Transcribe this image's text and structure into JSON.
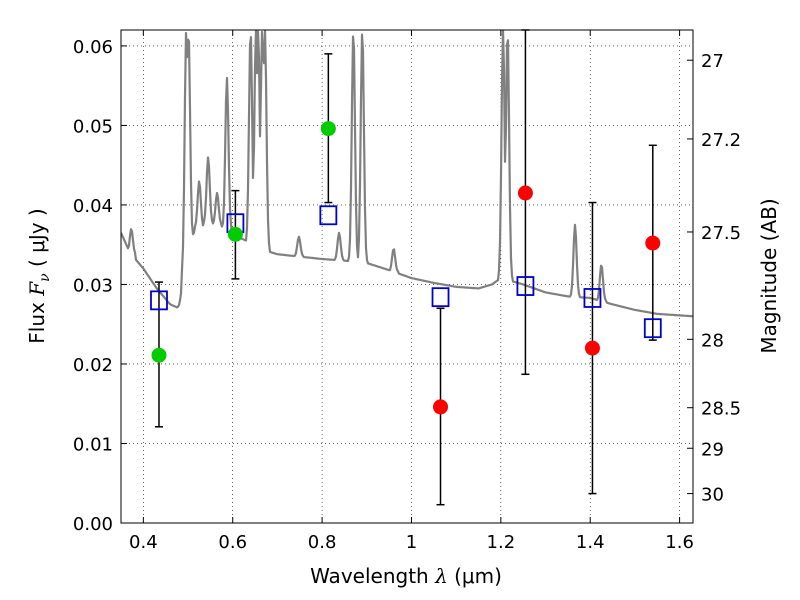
{
  "chart_data": {
    "type": "scatter",
    "xlabel": {
      "prefix": "Wavelength  ",
      "sym": "λ",
      "unit": " (μm)"
    },
    "ylabel": {
      "prefix": "Flux  ",
      "sym": "F",
      "sub": "ν",
      "unit": "  ( μJy )"
    },
    "y2label": "Magnitude (AB)",
    "xlim": [
      0.35,
      1.63
    ],
    "ylim": [
      0.0,
      0.062
    ],
    "grid": true,
    "x_ticks": [
      0.4,
      0.6,
      0.8,
      1.0,
      1.2,
      1.4,
      1.6
    ],
    "x_tick_labels": [
      "0.4",
      "0.6",
      "0.8",
      "1",
      "1.2",
      "1.4",
      "1.6"
    ],
    "y_ticks": [
      0.0,
      0.01,
      0.02,
      0.03,
      0.04,
      0.05,
      0.06
    ],
    "y_tick_labels": [
      "0.00",
      "0.01",
      "0.02",
      "0.03",
      "0.04",
      "0.05",
      "0.06"
    ],
    "y2_ticks": [
      {
        "label": "27",
        "flux": 0.0582
      },
      {
        "label": "27.2",
        "flux": 0.0483
      },
      {
        "label": "27.5",
        "flux": 0.0366
      },
      {
        "label": "28",
        "flux": 0.0231
      },
      {
        "label": "28.5",
        "flux": 0.0145
      },
      {
        "label": "29",
        "flux": 0.0094
      },
      {
        "label": "30",
        "flux": 0.0037
      }
    ],
    "detections": [
      {
        "x": 0.435,
        "y": 0.0211,
        "lo": 0.0121,
        "hi": 0.0303,
        "color": "#00cc00"
      },
      {
        "x": 0.606,
        "y": 0.0363,
        "lo": 0.0307,
        "hi": 0.0418,
        "color": "#00cc00"
      },
      {
        "x": 0.814,
        "y": 0.0496,
        "lo": 0.0403,
        "hi": 0.059,
        "color": "#00cc00"
      },
      {
        "x": 1.065,
        "y": 0.0146,
        "lo": 0.0023,
        "hi": 0.027,
        "color": "#ff0000"
      },
      {
        "x": 1.255,
        "y": 0.0415,
        "lo": 0.0187,
        "hi": 0.062,
        "color": "#ff0000"
      },
      {
        "x": 1.405,
        "y": 0.022,
        "lo": 0.0037,
        "hi": 0.0403,
        "color": "#ff0000"
      },
      {
        "x": 1.54,
        "y": 0.0352,
        "lo": 0.023,
        "hi": 0.0475,
        "color": "#ff0000"
      }
    ],
    "model_photometry": {
      "x": [
        0.435,
        0.606,
        0.814,
        1.065,
        1.255,
        1.405,
        1.54
      ],
      "y": [
        0.028,
        0.0377,
        0.0387,
        0.0284,
        0.0298,
        0.0283,
        0.0245
      ],
      "color": "#0000cc"
    },
    "sed_continuum": {
      "x": [
        0.35,
        0.37,
        0.4,
        0.43,
        0.46,
        0.48,
        0.49,
        0.495,
        0.5,
        0.52,
        0.55,
        0.58,
        0.6,
        0.63,
        0.66,
        0.7,
        0.75,
        0.8,
        0.85,
        0.9,
        0.95,
        1.0,
        1.05,
        1.1,
        1.15,
        1.18,
        1.2,
        1.25,
        1.3,
        1.35,
        1.4,
        1.45,
        1.5,
        1.55,
        1.63
      ],
      "y": [
        0.0365,
        0.034,
        0.032,
        0.0295,
        0.0275,
        0.027,
        0.0272,
        0.03,
        0.0355,
        0.037,
        0.0378,
        0.0372,
        0.0363,
        0.0355,
        0.0345,
        0.0338,
        0.0335,
        0.0332,
        0.033,
        0.0327,
        0.0318,
        0.0308,
        0.0302,
        0.0297,
        0.0295,
        0.03,
        0.0308,
        0.03,
        0.029,
        0.0285,
        0.0283,
        0.0275,
        0.0268,
        0.0263,
        0.026
      ],
      "color": "#808080"
    },
    "sed_lines": [
      {
        "x": 0.373,
        "peak": 0.037
      },
      {
        "x": 0.487,
        "peak": 0.0295
      },
      {
        "x": 0.496,
        "peak": 0.062
      },
      {
        "x": 0.501,
        "peak": 0.062
      },
      {
        "x": 0.525,
        "peak": 0.043
      },
      {
        "x": 0.545,
        "peak": 0.046
      },
      {
        "x": 0.565,
        "peak": 0.0415
      },
      {
        "x": 0.587,
        "peak": 0.056
      },
      {
        "x": 0.64,
        "peak": 0.062
      },
      {
        "x": 0.652,
        "peak": 0.062
      },
      {
        "x": 0.657,
        "peak": 0.062
      },
      {
        "x": 0.666,
        "peak": 0.062
      },
      {
        "x": 0.672,
        "peak": 0.062
      },
      {
        "x": 0.748,
        "peak": 0.036
      },
      {
        "x": 0.838,
        "peak": 0.0365
      },
      {
        "x": 0.87,
        "peak": 0.062
      },
      {
        "x": 0.89,
        "peak": 0.062
      },
      {
        "x": 0.96,
        "peak": 0.0345
      },
      {
        "x": 1.205,
        "peak": 0.062
      },
      {
        "x": 1.215,
        "peak": 0.062
      },
      {
        "x": 1.366,
        "peak": 0.0375
      },
      {
        "x": 1.425,
        "peak": 0.0325
      }
    ]
  }
}
